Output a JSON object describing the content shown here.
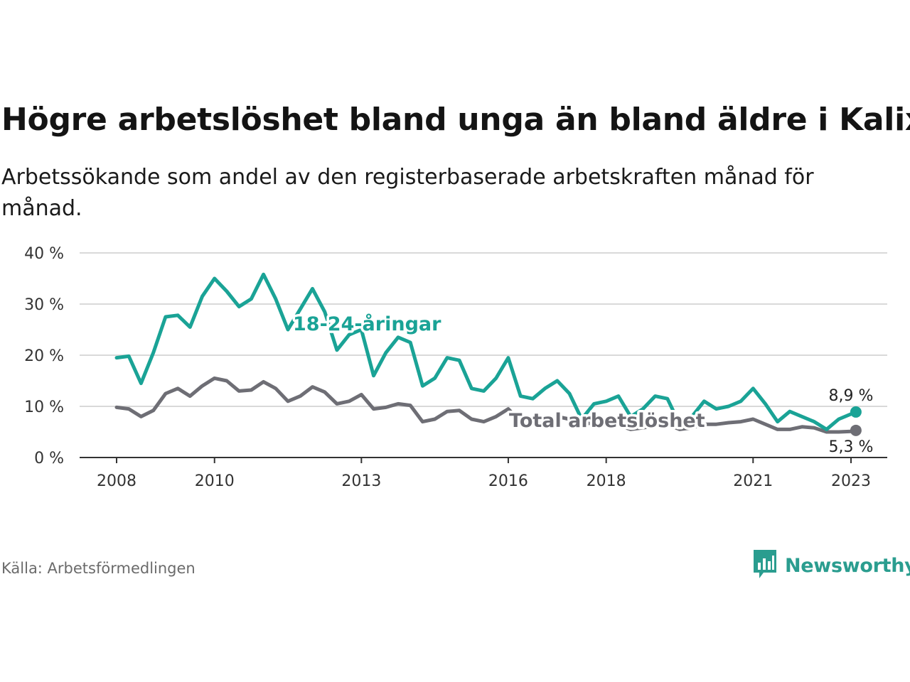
{
  "title": "Högre arbetslöshet bland unga än bland äldre i Kalix",
  "subtitle": "Arbetssökande som andel av den registerbaserade arbetskraften månad för månad.",
  "source": "Källa: Arbetsförmedlingen",
  "brand": {
    "name": "Newsworthy",
    "icon": "newsworthy-logo-icon",
    "color": "#2a9d8f"
  },
  "colors": {
    "youth": "#1aa396",
    "total": "#6e6e75",
    "grid": "#d9d9d9",
    "axis": "#333333"
  },
  "chart_data": {
    "type": "line",
    "title": "Högre arbetslöshet bland unga än bland äldre i Kalix",
    "xlabel": "",
    "ylabel": "",
    "x_range": [
      2007.5,
      2024.3
    ],
    "ylim": [
      0,
      40
    ],
    "y_ticks": [
      0,
      10,
      20,
      30,
      40
    ],
    "y_tick_labels": [
      "0 %",
      "10 %",
      "20 %",
      "30 %",
      "40 %"
    ],
    "x_ticks": [
      2008,
      2010,
      2013,
      2016,
      2018,
      2021,
      2023
    ],
    "x_tick_labels": [
      "2008",
      "2010",
      "2013",
      "2016",
      "2018",
      "2021",
      "2023"
    ],
    "grid": true,
    "series": [
      {
        "name": "18-24-åringar",
        "label": "18-24-åringar",
        "color": "#1aa396",
        "end_label": "8,9 %",
        "x": [
          2008.0,
          2008.25,
          2008.5,
          2008.75,
          2009.0,
          2009.25,
          2009.5,
          2009.75,
          2010.0,
          2010.25,
          2010.5,
          2010.75,
          2011.0,
          2011.25,
          2011.5,
          2011.75,
          2012.0,
          2012.25,
          2012.5,
          2012.75,
          2013.0,
          2013.25,
          2013.5,
          2013.75,
          2014.0,
          2014.25,
          2014.5,
          2014.75,
          2015.0,
          2015.25,
          2015.5,
          2015.75,
          2016.0,
          2016.25,
          2016.5,
          2016.75,
          2017.0,
          2017.25,
          2017.5,
          2017.75,
          2018.0,
          2018.25,
          2018.5,
          2018.75,
          2019.0,
          2019.25,
          2019.5,
          2019.75,
          2020.0,
          2020.25,
          2020.5,
          2020.75,
          2021.0,
          2021.25,
          2021.5,
          2021.75,
          2022.0,
          2022.25,
          2022.5,
          2022.75,
          2023.0,
          2023.1
        ],
        "values": [
          19.5,
          19.8,
          14.5,
          20.5,
          27.5,
          27.8,
          25.5,
          31.5,
          35.0,
          32.5,
          29.5,
          31.0,
          35.8,
          31.0,
          25.0,
          29.0,
          33.0,
          28.5,
          21.0,
          24.0,
          25.0,
          16.0,
          20.5,
          23.5,
          22.5,
          14.0,
          15.5,
          19.5,
          19.0,
          13.5,
          13.0,
          15.5,
          19.5,
          12.0,
          11.5,
          13.5,
          15.0,
          12.5,
          7.5,
          10.5,
          11.0,
          12.0,
          8.0,
          9.5,
          12.0,
          11.5,
          6.5,
          8.0,
          11.0,
          9.5,
          10.0,
          11.0,
          13.5,
          10.5,
          7.0,
          9.0,
          8.0,
          7.0,
          5.5,
          7.5,
          8.5,
          8.9
        ]
      },
      {
        "name": "Total arbetslöshet",
        "label": "Total arbetslöshet",
        "color": "#6e6e75",
        "end_label": "5,3 %",
        "x": [
          2008.0,
          2008.25,
          2008.5,
          2008.75,
          2009.0,
          2009.25,
          2009.5,
          2009.75,
          2010.0,
          2010.25,
          2010.5,
          2010.75,
          2011.0,
          2011.25,
          2011.5,
          2011.75,
          2012.0,
          2012.25,
          2012.5,
          2012.75,
          2013.0,
          2013.25,
          2013.5,
          2013.75,
          2014.0,
          2014.25,
          2014.5,
          2014.75,
          2015.0,
          2015.25,
          2015.5,
          2015.75,
          2016.0,
          2016.25,
          2016.5,
          2016.75,
          2017.0,
          2017.25,
          2017.5,
          2017.75,
          2018.0,
          2018.25,
          2018.5,
          2018.75,
          2019.0,
          2019.25,
          2019.5,
          2019.75,
          2020.0,
          2020.25,
          2020.5,
          2020.75,
          2021.0,
          2021.25,
          2021.5,
          2021.75,
          2022.0,
          2022.25,
          2022.5,
          2022.75,
          2023.0,
          2023.1
        ],
        "values": [
          9.8,
          9.5,
          8.0,
          9.2,
          12.5,
          13.5,
          12.0,
          14.0,
          15.5,
          15.0,
          13.0,
          13.2,
          14.8,
          13.5,
          11.0,
          12.0,
          13.8,
          12.8,
          10.5,
          11.0,
          12.3,
          9.5,
          9.8,
          10.5,
          10.2,
          7.0,
          7.5,
          9.0,
          9.2,
          7.5,
          7.0,
          8.0,
          9.5,
          7.0,
          6.8,
          7.2,
          8.0,
          7.5,
          6.5,
          6.8,
          6.5,
          6.3,
          5.5,
          5.8,
          6.2,
          6.5,
          5.5,
          5.8,
          6.5,
          6.5,
          6.8,
          7.0,
          7.5,
          6.5,
          5.5,
          5.5,
          6.0,
          5.8,
          5.0,
          5.0,
          5.1,
          5.3
        ]
      }
    ],
    "legend": "inline-labels"
  }
}
